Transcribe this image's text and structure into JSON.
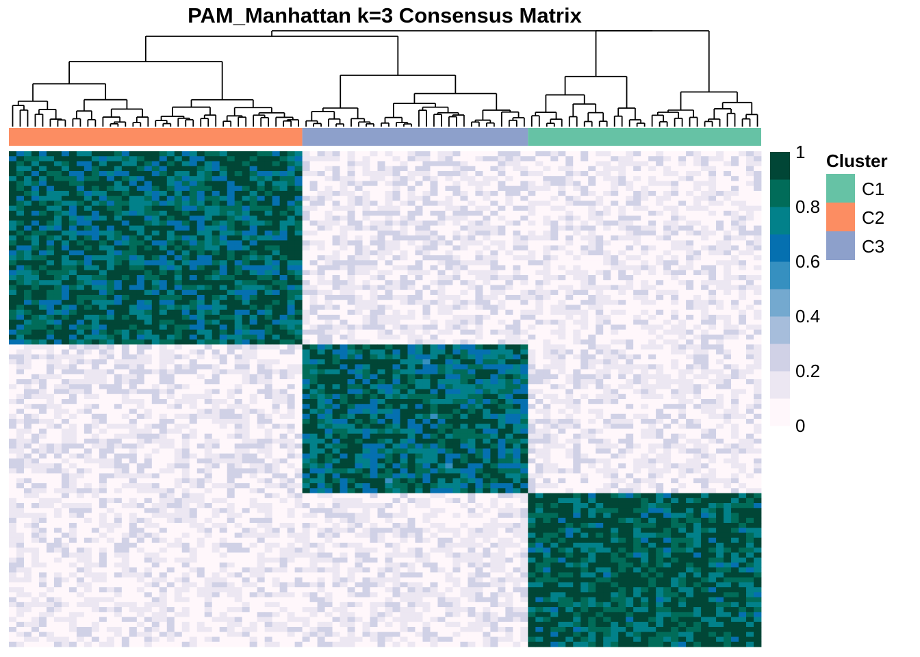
{
  "chart_data": {
    "type": "heatmap",
    "title": "PAM_Manhattan k=3 Consensus Matrix",
    "value_range": [
      0,
      1
    ],
    "color_scale": {
      "breaks": [
        0,
        0.1,
        0.2,
        0.3,
        0.4,
        0.5,
        0.6,
        0.7,
        0.8,
        0.9,
        1.0
      ],
      "colors": [
        "#fff7fb",
        "#ece7f2",
        "#d0d1e6",
        "#a6bddb",
        "#74a9cf",
        "#3690c0",
        "#0570b0",
        "#02818a",
        "#016c59",
        "#014636"
      ],
      "tick_labels": [
        "0",
        "0.2",
        "0.4",
        "0.6",
        "0.8",
        "1"
      ]
    },
    "annotation": {
      "title": "Cluster",
      "order_in_columns": [
        "C2",
        "C3",
        "C1"
      ],
      "column_fraction": [
        0.387,
        0.302,
        0.311
      ],
      "within_cluster_consensus": {
        "C2": 0.85,
        "C3": 0.82,
        "C1": 0.9
      },
      "between_cluster_consensus": {
        "C2-C3": 0.08,
        "C2-C1": 0.06,
        "C3-C1": 0.07
      }
    },
    "legend": {
      "title": "Cluster",
      "items": [
        {
          "label": "C1",
          "color": "#66c2a5"
        },
        {
          "label": "C2",
          "color": "#fc8d62"
        },
        {
          "label": "C3",
          "color": "#8da0cb"
        }
      ]
    },
    "dendrogram": {
      "position": "top",
      "linkage": "hierarchical",
      "line_color": "#000000"
    }
  }
}
